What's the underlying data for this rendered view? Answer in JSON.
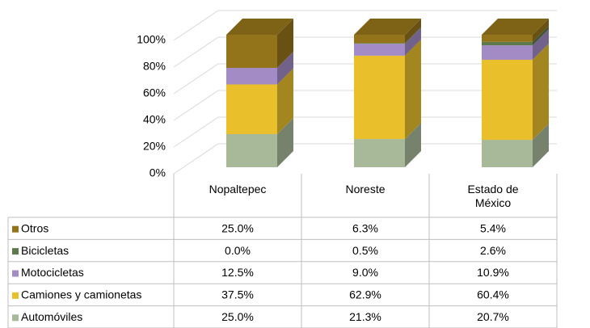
{
  "chart_data": {
    "type": "bar3d_stacked",
    "categories": [
      "Nopaltepec",
      "Noreste",
      "Estado de México"
    ],
    "series": [
      {
        "name": "Otros",
        "color": "#94741a",
        "values": [
          25.0,
          6.3,
          5.4
        ],
        "value_labels": [
          "25.0%",
          "6.3%",
          "5.4%"
        ]
      },
      {
        "name": "Bicicletas",
        "color": "#5d7a4c",
        "values": [
          0.0,
          0.5,
          2.6
        ],
        "value_labels": [
          "0.0%",
          "0.5%",
          "2.6%"
        ]
      },
      {
        "name": "Motocicletas",
        "color": "#a38cc6",
        "values": [
          12.5,
          9.0,
          10.9
        ],
        "value_labels": [
          "12.5%",
          "9.0%",
          "10.9%"
        ]
      },
      {
        "name": "Camiones y camionetas",
        "color": "#e9c02c",
        "values": [
          37.5,
          62.9,
          60.4
        ],
        "value_labels": [
          "37.5%",
          "62.9%",
          "60.4%"
        ]
      },
      {
        "name": "Automóviles",
        "color": "#a8b99a",
        "values": [
          25.0,
          21.3,
          20.7
        ],
        "value_labels": [
          "25.0%",
          "21.3%",
          "20.7%"
        ]
      }
    ],
    "ylim": [
      0,
      100
    ],
    "yticks": [
      {
        "value": 0,
        "label": "0%"
      },
      {
        "value": 20,
        "label": "20%"
      },
      {
        "value": 40,
        "label": "40%"
      },
      {
        "value": 60,
        "label": "60%"
      },
      {
        "value": 80,
        "label": "80%"
      },
      {
        "value": 100,
        "label": "100%"
      }
    ],
    "grid": true
  }
}
